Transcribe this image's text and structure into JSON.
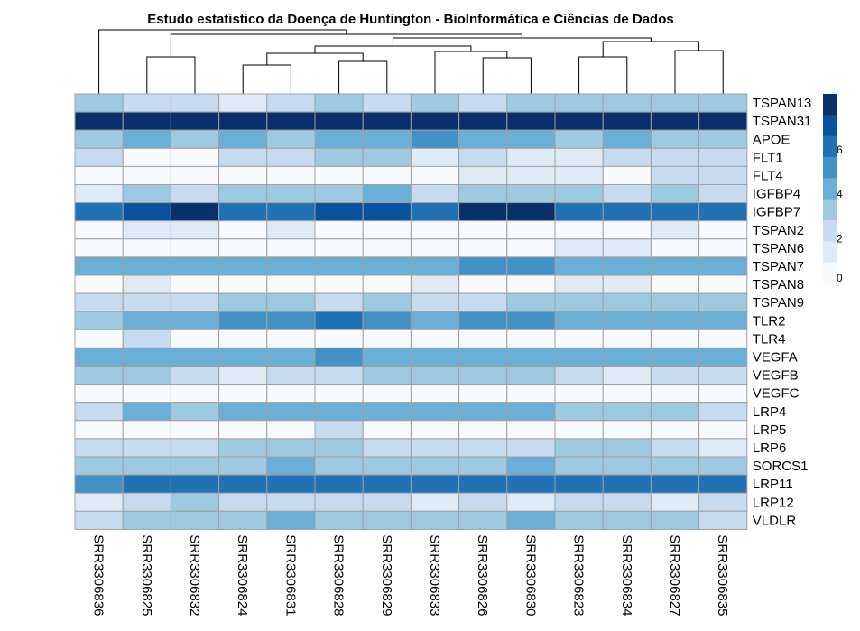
{
  "chart_data": {
    "type": "heatmap",
    "title": "Estudo estatistico da Doença de Huntington - BioInformática e Ciências de Dados",
    "columns": [
      "SRR3306836",
      "SRR3306825",
      "SRR3306832",
      "SRR3306824",
      "SRR3306831",
      "SRR3306828",
      "SRR3306829",
      "SRR3306833",
      "SRR3306826",
      "SRR3306830",
      "SRR3306823",
      "SRR3306834",
      "SRR3306827",
      "SRR3306835"
    ],
    "rows": [
      "TSPAN13",
      "TSPAN31",
      "APOE",
      "FLT1",
      "FLT4",
      "IGFBP4",
      "IGFBP7",
      "TSPAN2",
      "TSPAN6",
      "TSPAN7",
      "TSPAN8",
      "TSPAN9",
      "TLR2",
      "TLR4",
      "VEGFA",
      "VEGFB",
      "VEGFC",
      "LRP4",
      "LRP5",
      "LRP6",
      "SORCS1",
      "LRP11",
      "LRP12",
      "VLDLR"
    ],
    "values": [
      [
        3.0,
        2.5,
        2.5,
        1.5,
        2.5,
        3.0,
        2.5,
        3.0,
        2.5,
        3.0,
        3.0,
        3.0,
        3.0,
        3.0
      ],
      [
        8.2,
        8.2,
        8.2,
        8.2,
        8.2,
        8.2,
        8.2,
        8.2,
        8.2,
        8.2,
        8.2,
        8.2,
        8.2,
        8.2
      ],
      [
        3.0,
        4.0,
        3.0,
        4.0,
        3.0,
        4.0,
        4.0,
        5.0,
        4.0,
        4.0,
        3.0,
        4.0,
        3.0,
        3.0
      ],
      [
        2.0,
        0.5,
        0.5,
        2.0,
        2.0,
        3.0,
        3.0,
        1.5,
        2.0,
        1.5,
        1.5,
        2.0,
        2.5,
        2.0
      ],
      [
        0.5,
        0.5,
        0.5,
        0.5,
        0.5,
        0.5,
        0.5,
        0.5,
        1.5,
        1.5,
        1.5,
        0.5,
        2.5,
        2.0
      ],
      [
        1.5,
        3.0,
        2.0,
        3.0,
        3.0,
        3.0,
        4.0,
        2.0,
        3.0,
        3.0,
        3.0,
        2.0,
        3.0,
        2.0
      ],
      [
        6.5,
        7.5,
        8.2,
        6.5,
        6.5,
        7.5,
        7.5,
        6.5,
        8.2,
        8.2,
        6.5,
        6.5,
        6.5,
        6.5
      ],
      [
        0.5,
        1.5,
        1.5,
        0.5,
        1.5,
        0.5,
        0.5,
        0.5,
        0.5,
        0.5,
        0.5,
        0.5,
        1.5,
        0.5
      ],
      [
        0.5,
        0.5,
        0.5,
        0.5,
        0.5,
        0.5,
        0.5,
        0.5,
        0.5,
        0.5,
        1.5,
        1.5,
        0.5,
        0.5
      ],
      [
        4.0,
        4.0,
        4.0,
        4.0,
        4.0,
        4.0,
        4.0,
        4.0,
        5.0,
        5.0,
        4.0,
        4.0,
        4.0,
        4.0
      ],
      [
        0.5,
        1.5,
        0.5,
        0.5,
        0.5,
        0.5,
        0.5,
        1.5,
        0.5,
        0.5,
        1.5,
        1.5,
        0.5,
        0.5
      ],
      [
        2.0,
        2.0,
        2.0,
        3.0,
        3.0,
        2.0,
        3.0,
        2.0,
        2.0,
        3.0,
        3.0,
        3.0,
        3.0,
        3.0
      ],
      [
        3.0,
        4.0,
        4.0,
        5.0,
        5.0,
        6.0,
        5.0,
        4.0,
        5.0,
        5.0,
        4.0,
        4.0,
        4.0,
        4.0
      ],
      [
        0.5,
        2.0,
        0.5,
        0.5,
        0.5,
        0.5,
        0.5,
        0.5,
        0.5,
        0.5,
        0.5,
        0.5,
        0.5,
        0.5
      ],
      [
        4.0,
        4.0,
        4.0,
        4.0,
        4.0,
        5.0,
        4.0,
        4.0,
        4.0,
        4.0,
        4.0,
        4.0,
        4.0,
        4.0
      ],
      [
        3.0,
        3.0,
        2.0,
        1.5,
        2.0,
        2.0,
        3.0,
        3.0,
        3.0,
        3.0,
        2.0,
        1.5,
        2.0,
        2.0
      ],
      [
        0.5,
        0.5,
        0.5,
        0.5,
        0.5,
        0.5,
        0.5,
        0.5,
        0.5,
        0.5,
        0.5,
        0.5,
        0.5,
        0.5
      ],
      [
        2.0,
        4.0,
        3.0,
        4.0,
        4.0,
        4.0,
        4.0,
        4.0,
        4.0,
        4.0,
        3.0,
        3.0,
        3.0,
        2.0
      ],
      [
        0.5,
        0.5,
        0.5,
        0.5,
        0.5,
        2.0,
        0.5,
        0.5,
        0.5,
        0.5,
        0.5,
        0.5,
        0.5,
        0.5
      ],
      [
        2.0,
        2.0,
        2.0,
        3.0,
        3.0,
        3.0,
        2.0,
        2.0,
        2.0,
        2.0,
        3.0,
        3.0,
        2.0,
        1.5
      ],
      [
        3.0,
        3.0,
        3.0,
        3.0,
        4.0,
        3.0,
        3.0,
        3.0,
        3.0,
        4.0,
        3.0,
        3.0,
        3.0,
        3.0
      ],
      [
        5.0,
        6.0,
        6.0,
        6.0,
        6.0,
        6.0,
        6.0,
        6.0,
        6.0,
        6.0,
        6.0,
        6.0,
        6.0,
        6.0
      ],
      [
        1.5,
        2.0,
        3.0,
        2.0,
        2.0,
        2.0,
        2.0,
        1.5,
        2.0,
        1.5,
        2.0,
        2.0,
        1.5,
        2.0
      ],
      [
        2.0,
        3.0,
        3.0,
        3.0,
        4.0,
        3.0,
        3.0,
        3.0,
        3.0,
        4.0,
        3.0,
        3.0,
        3.0,
        2.0
      ]
    ],
    "legend_ticks": [
      0,
      2,
      4,
      6
    ],
    "value_range": [
      0,
      8.5
    ],
    "legend_placement": "right",
    "colors": [
      "#f7fbff",
      "#deebf7",
      "#c6dbef",
      "#9ecae1",
      "#6baed6",
      "#4292c6",
      "#2171b5",
      "#08519c",
      "#08306b"
    ],
    "grid_color": "#a0a0a0",
    "dendrogram": "columns"
  }
}
